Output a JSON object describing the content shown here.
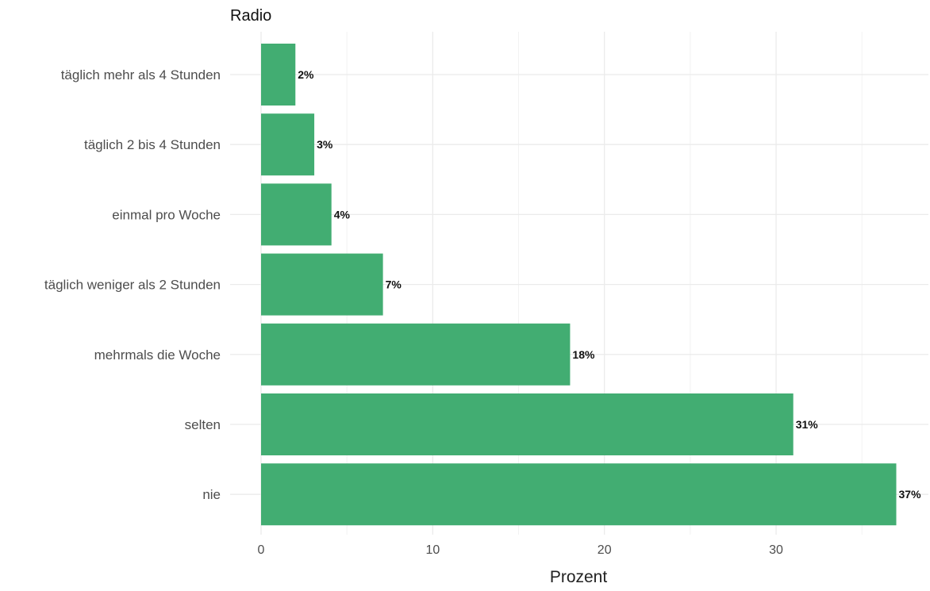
{
  "chart_data": {
    "type": "bar",
    "orientation": "horizontal",
    "title": "Radio",
    "xlabel": "Prozent",
    "ylabel": "",
    "categories": [
      "täglich mehr als 4 Stunden",
      "täglich 2 bis 4 Stunden",
      "einmal pro Woche",
      "täglich weniger als 2 Stunden",
      "mehrmals die Woche",
      "selten",
      "nie"
    ],
    "values": [
      2.0,
      3.1,
      4.1,
      7.1,
      18.0,
      31.0,
      37.0
    ],
    "data_labels": [
      "2%",
      "3%",
      "4%",
      "7%",
      "18%",
      "31%",
      "37%"
    ],
    "xlim": [
      0,
      38.5
    ],
    "xticks": [
      0,
      10,
      20,
      30
    ],
    "xtick_labels": [
      "0",
      "10",
      "20",
      "30"
    ],
    "grid": true,
    "legend": "none",
    "bar_color": "#42ad72"
  }
}
